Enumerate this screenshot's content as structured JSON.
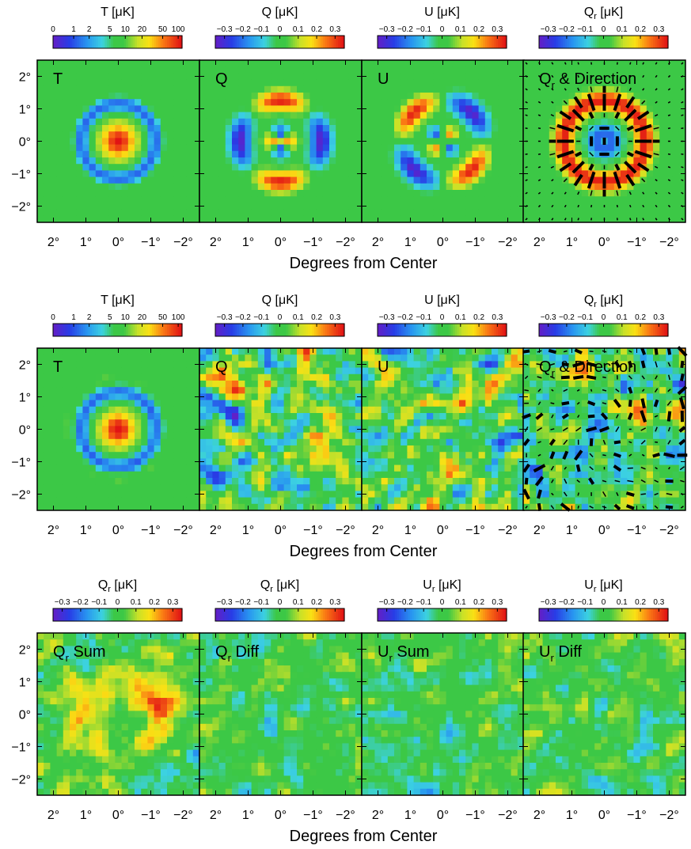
{
  "figure": {
    "xlabel": "Degrees from Center",
    "x_ticks": [
      "2°",
      "1°",
      "0°",
      "−1°",
      "−2°"
    ],
    "y_ticks": [
      "2°",
      "1°",
      "0°",
      "−1°",
      "−2°"
    ]
  },
  "colorbar_ticks": {
    "T": [
      "0",
      "1",
      "2",
      "5",
      "10",
      "20",
      "50",
      "100"
    ],
    "pol": [
      "−0.3",
      "−0.2",
      "−0.1",
      "0",
      "0.1",
      "0.2",
      "0.3"
    ]
  },
  "chart_data": [
    {
      "type": "heatmap",
      "row": 1,
      "col": 1,
      "title": "T",
      "title_sub": "",
      "colorbar": {
        "label": "T",
        "label_sub": "",
        "unit": " [μK]",
        "scale": "log",
        "range": [
          0,
          100
        ]
      },
      "pattern": "temp_ring",
      "noise": 0.0,
      "vectors": false,
      "extent_deg": [
        -2.5,
        2.5
      ]
    },
    {
      "type": "heatmap",
      "row": 1,
      "col": 2,
      "title": "Q",
      "title_sub": "",
      "colorbar": {
        "label": "Q",
        "label_sub": "",
        "unit": " [μK]",
        "scale": "linear",
        "range": [
          -0.35,
          0.35
        ]
      },
      "pattern": "Q_quad",
      "noise": 0.0,
      "vectors": false,
      "extent_deg": [
        -2.5,
        2.5
      ]
    },
    {
      "type": "heatmap",
      "row": 1,
      "col": 3,
      "title": "U",
      "title_sub": "",
      "colorbar": {
        "label": "U",
        "label_sub": "",
        "unit": " [μK]",
        "scale": "linear",
        "range": [
          -0.35,
          0.35
        ]
      },
      "pattern": "U_quad",
      "noise": 0.0,
      "vectors": false,
      "extent_deg": [
        -2.5,
        2.5
      ]
    },
    {
      "type": "heatmap",
      "row": 1,
      "col": 4,
      "title": "Q",
      "title_sub": "r",
      "title_rest": " & Direction",
      "colorbar": {
        "label": "Q",
        "label_sub": "r",
        "unit": " [μK]",
        "scale": "linear",
        "range": [
          -0.35,
          0.35
        ]
      },
      "pattern": "Qr_ring",
      "noise": 0.0,
      "vectors": true,
      "extent_deg": [
        -2.5,
        2.5
      ]
    },
    {
      "type": "heatmap",
      "row": 2,
      "col": 1,
      "title": "T",
      "title_sub": "",
      "colorbar": {
        "label": "T",
        "label_sub": "",
        "unit": " [μK]",
        "scale": "log",
        "range": [
          0,
          100
        ]
      },
      "pattern": "temp_ring",
      "noise": 0.03,
      "vectors": false,
      "extent_deg": [
        -2.5,
        2.5
      ]
    },
    {
      "type": "heatmap",
      "row": 2,
      "col": 2,
      "title": "Q",
      "title_sub": "",
      "colorbar": {
        "label": "Q",
        "label_sub": "",
        "unit": " [μK]",
        "scale": "linear",
        "range": [
          -0.35,
          0.35
        ]
      },
      "pattern": "noise",
      "noise": 0.2,
      "vectors": false,
      "extent_deg": [
        -2.5,
        2.5
      ]
    },
    {
      "type": "heatmap",
      "row": 2,
      "col": 3,
      "title": "U",
      "title_sub": "",
      "colorbar": {
        "label": "U",
        "label_sub": "",
        "unit": " [μK]",
        "scale": "linear",
        "range": [
          -0.35,
          0.35
        ]
      },
      "pattern": "noise",
      "noise": 0.2,
      "vectors": false,
      "extent_deg": [
        -2.5,
        2.5
      ]
    },
    {
      "type": "heatmap",
      "row": 2,
      "col": 4,
      "title": "Q",
      "title_sub": "r",
      "title_rest": " & Direction",
      "colorbar": {
        "label": "Q",
        "label_sub": "r",
        "unit": " [μK]",
        "scale": "linear",
        "range": [
          -0.35,
          0.35
        ]
      },
      "pattern": "noise",
      "noise": 0.2,
      "vectors": true,
      "extent_deg": [
        -2.5,
        2.5
      ]
    },
    {
      "type": "heatmap",
      "row": 3,
      "col": 1,
      "title": "Q",
      "title_sub": "r",
      "title_rest": " Sum",
      "colorbar": {
        "label": "Q",
        "label_sub": "r",
        "unit": " [μK]",
        "scale": "linear",
        "range": [
          -0.35,
          0.35
        ]
      },
      "pattern": "Qr_sum",
      "noise": 0.12,
      "vectors": false,
      "extent_deg": [
        -2.5,
        2.5
      ]
    },
    {
      "type": "heatmap",
      "row": 3,
      "col": 2,
      "title": "Q",
      "title_sub": "r",
      "title_rest": " Diff",
      "colorbar": {
        "label": "Q",
        "label_sub": "r",
        "unit": " [μK]",
        "scale": "linear",
        "range": [
          -0.35,
          0.35
        ]
      },
      "pattern": "noise",
      "noise": 0.11,
      "vectors": false,
      "extent_deg": [
        -2.5,
        2.5
      ]
    },
    {
      "type": "heatmap",
      "row": 3,
      "col": 3,
      "title": "U",
      "title_sub": "r",
      "title_rest": " Sum",
      "colorbar": {
        "label": "U",
        "label_sub": "r",
        "unit": " [μK]",
        "scale": "linear",
        "range": [
          -0.35,
          0.35
        ]
      },
      "pattern": "noise",
      "noise": 0.11,
      "vectors": false,
      "extent_deg": [
        -2.5,
        2.5
      ]
    },
    {
      "type": "heatmap",
      "row": 3,
      "col": 4,
      "title": "U",
      "title_sub": "r",
      "title_rest": " Diff",
      "colorbar": {
        "label": "U",
        "label_sub": "r",
        "unit": " [μK]",
        "scale": "linear",
        "range": [
          -0.35,
          0.35
        ]
      },
      "pattern": "noise",
      "noise": 0.11,
      "vectors": false,
      "extent_deg": [
        -2.5,
        2.5
      ]
    }
  ]
}
